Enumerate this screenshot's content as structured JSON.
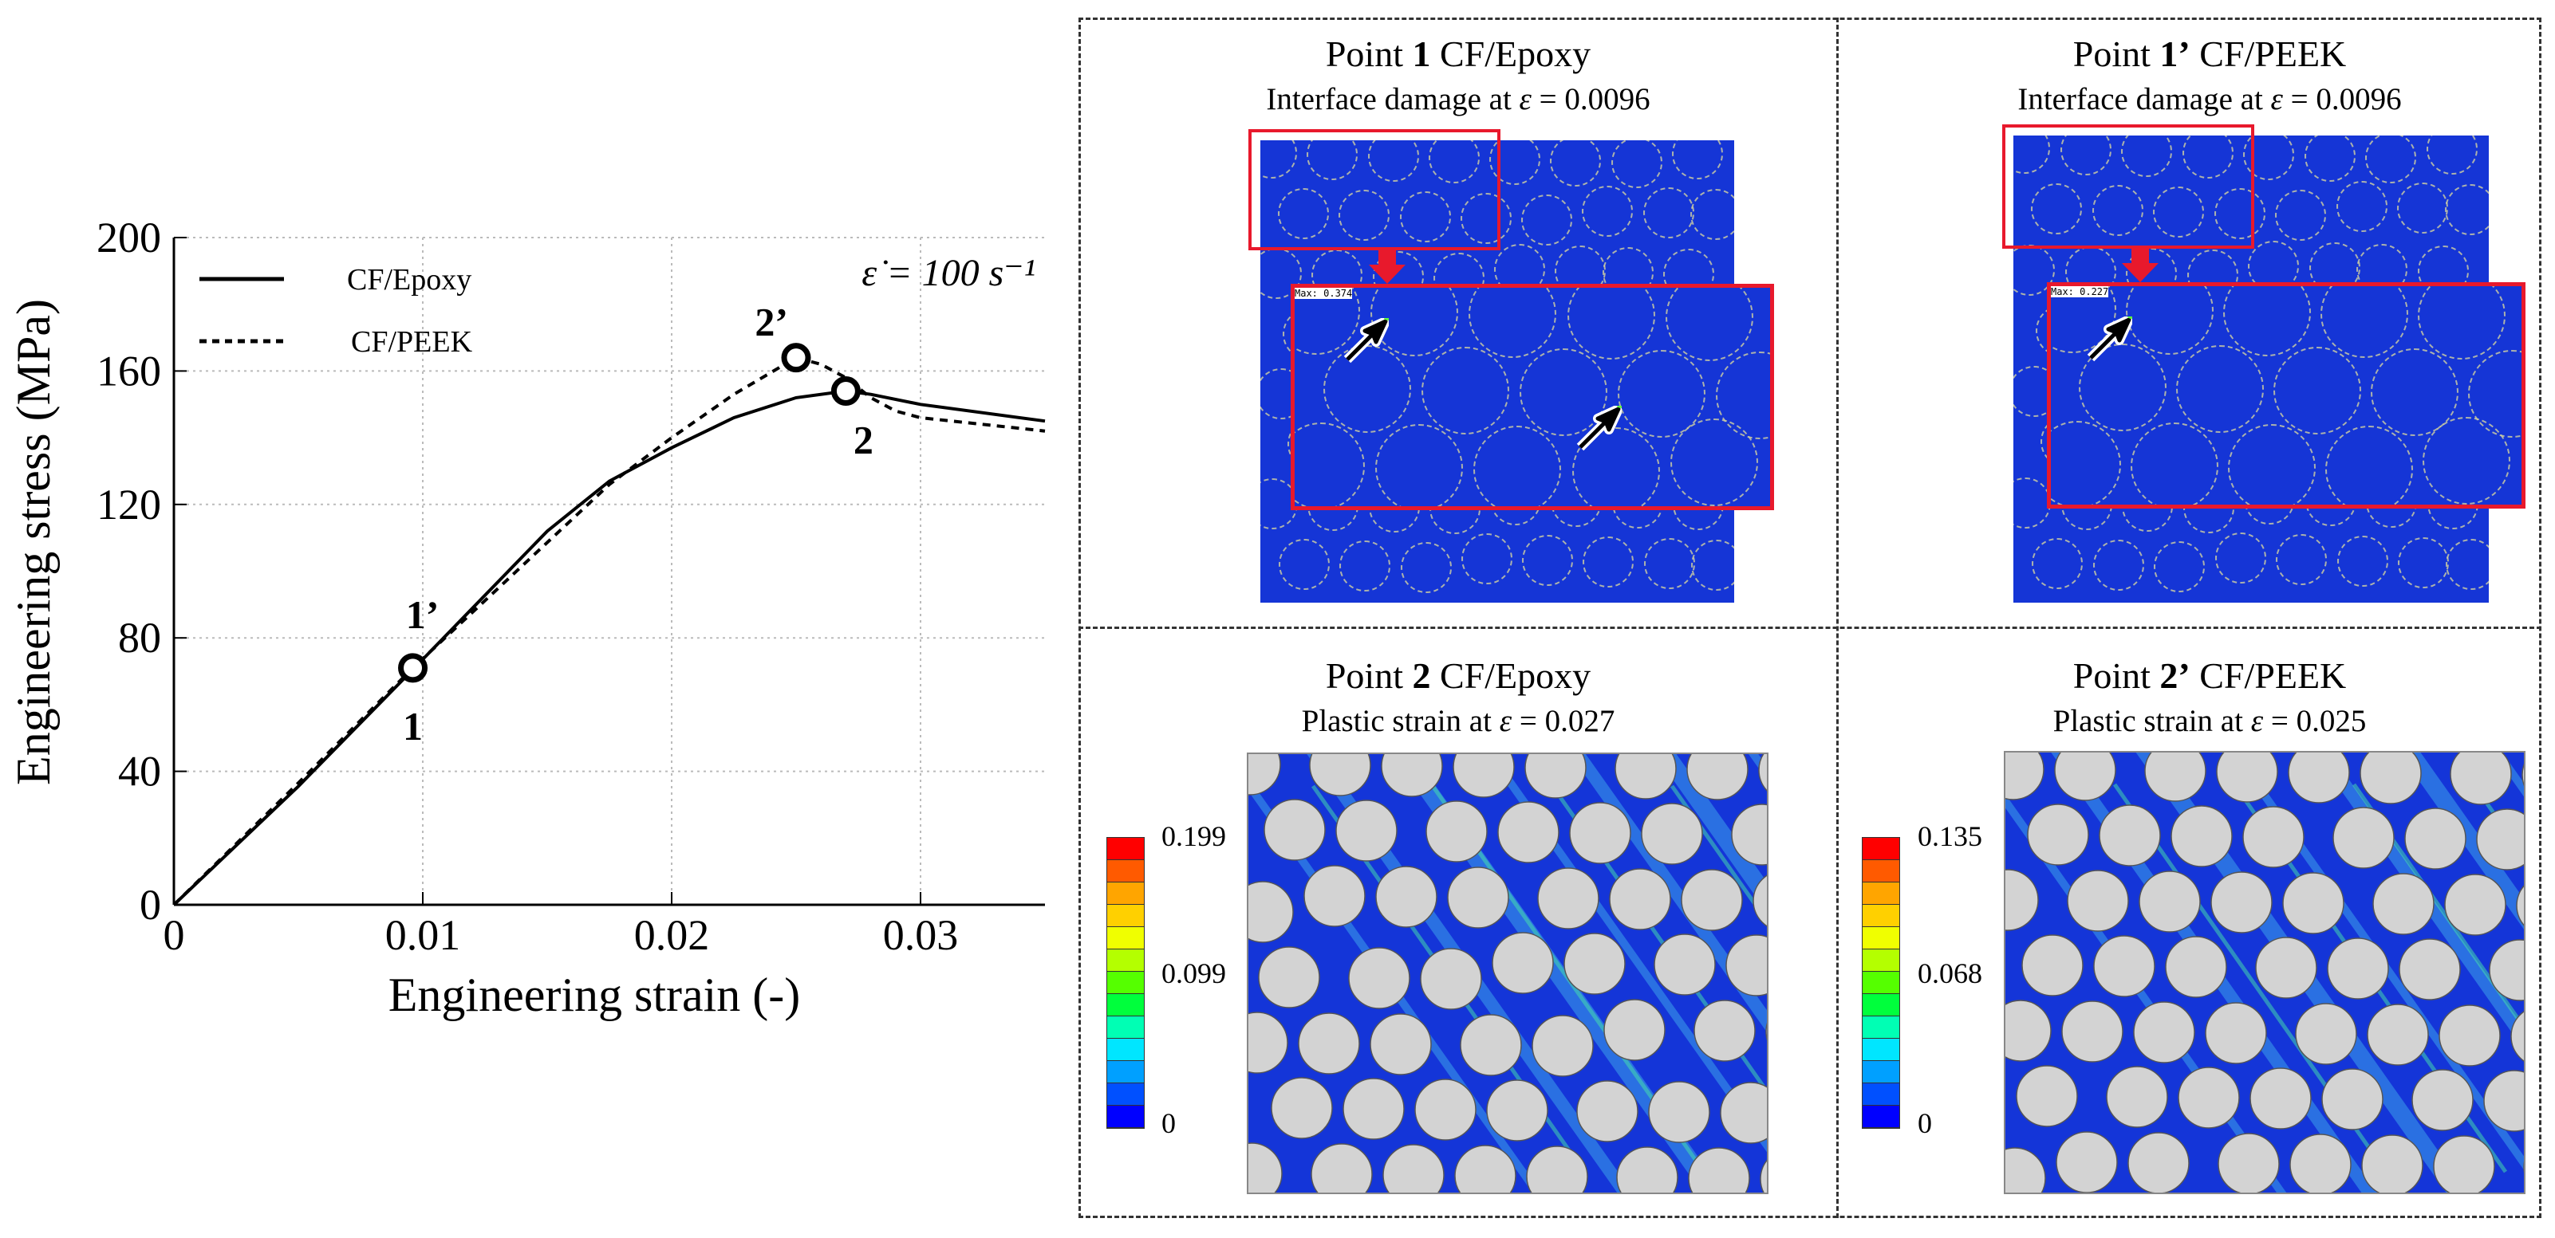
{
  "chart_data": {
    "type": "line",
    "xlabel": "Engineering strain (-)",
    "ylabel": "Engineering stress (MPa)",
    "xlim": [
      0,
      0.035
    ],
    "ylim": [
      0,
      200
    ],
    "xticks": [
      0,
      0.01,
      0.02,
      0.03
    ],
    "xtick_labels": [
      "0",
      "0.01",
      "0.02",
      "0.03"
    ],
    "yticks": [
      0,
      40,
      80,
      120,
      160,
      200
    ],
    "ytick_labels": [
      "0",
      "40",
      "80",
      "120",
      "160",
      "200"
    ],
    "grid": true,
    "legend_position": "top-left",
    "annotation": "ε̇ = 100 s⁻¹",
    "series": [
      {
        "name": "CF/Epoxy",
        "style": "solid",
        "x": [
          0,
          0.005,
          0.0096,
          0.015,
          0.0175,
          0.02,
          0.0225,
          0.025,
          0.027,
          0.028,
          0.03,
          0.035
        ],
        "y": [
          0,
          35.5,
          70.5,
          112,
          127,
          137,
          146,
          152,
          154,
          153,
          150,
          145
        ]
      },
      {
        "name": "CF/PEEK",
        "style": "dashed",
        "x": [
          0,
          0.005,
          0.0096,
          0.0175,
          0.02,
          0.0225,
          0.025,
          0.026,
          0.027,
          0.028,
          0.029,
          0.03,
          0.035
        ],
        "y": [
          0,
          36.5,
          71,
          126,
          140,
          153,
          164,
          162,
          158,
          152,
          148,
          146,
          142
        ]
      }
    ],
    "points": [
      {
        "label": "1",
        "x": 0.0096,
        "y": 71,
        "label_side": "below"
      },
      {
        "label": "1’",
        "x": 0.0096,
        "y": 71,
        "label_side": "above"
      },
      {
        "label": "2’",
        "x": 0.025,
        "y": 164,
        "label_side": "upper-left"
      },
      {
        "label": "2",
        "x": 0.027,
        "y": 154,
        "label_side": "lower-right"
      }
    ]
  },
  "panels": {
    "p1": {
      "title_pre": "Point ",
      "title_num": "1",
      "title_post": " CF/Epoxy",
      "subtitle_pre": "Interface damage at ",
      "subtitle_sym": "ε",
      "subtitle_post": " = 0.0096",
      "max_label": "Max: 0.374"
    },
    "p1p": {
      "title_pre": "Point ",
      "title_num": "1’",
      "title_post": " CF/PEEK",
      "subtitle_pre": "Interface damage at ",
      "subtitle_sym": "ε",
      "subtitle_post": " = 0.0096",
      "max_label": "Max: 0.227"
    },
    "p2": {
      "title_pre": "Point ",
      "title_num": "2",
      "title_post": " CF/Epoxy",
      "subtitle_pre": "Plastic strain at ",
      "subtitle_sym": "ε",
      "subtitle_post": " = 0.027",
      "legend_max": "0.199",
      "legend_mid": "0.099",
      "legend_min": "0"
    },
    "p2p": {
      "title_pre": "Point ",
      "title_num": "2’",
      "title_post": " CF/PEEK",
      "subtitle_pre": "Plastic strain at ",
      "subtitle_sym": "ε",
      "subtitle_post": " = 0.025",
      "legend_max": "0.135",
      "legend_mid": "0.068",
      "legend_min": "0"
    }
  },
  "colors": {
    "mesh_blue": "#1535d6",
    "highlight_red": "#e8192c",
    "legend": [
      "#ff0000",
      "#ff5a00",
      "#ffa500",
      "#ffd000",
      "#f0ff00",
      "#b4ff00",
      "#55ff00",
      "#00ff3c",
      "#00ffb4",
      "#00e6ff",
      "#00a0ff",
      "#0050ff",
      "#0000ff"
    ]
  }
}
